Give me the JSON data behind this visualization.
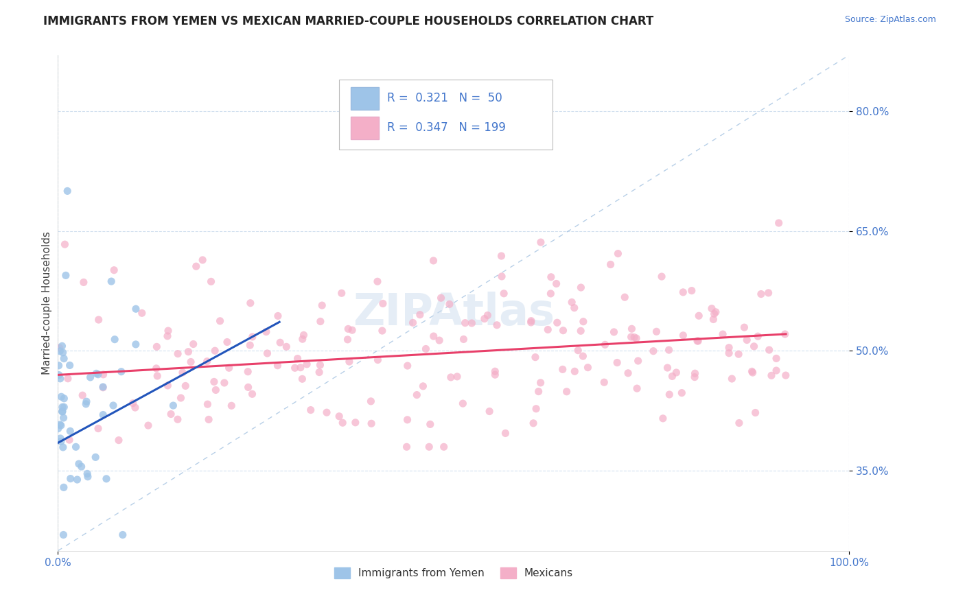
{
  "title": "IMMIGRANTS FROM YEMEN VS MEXICAN MARRIED-COUPLE HOUSEHOLDS CORRELATION CHART",
  "source_text": "Source: ZipAtlas.com",
  "ylabel": "Married-couple Households",
  "xlim": [
    0.0,
    1.0
  ],
  "ylim": [
    0.25,
    0.87
  ],
  "ytick_values": [
    0.35,
    0.5,
    0.65,
    0.8
  ],
  "ytick_labels": [
    "35.0%",
    "50.0%",
    "65.0%",
    "80.0%"
  ],
  "xtick_values": [
    0.0,
    1.0
  ],
  "xtick_labels": [
    "0.0%",
    "100.0%"
  ],
  "series1_color": "#9ec4e8",
  "series2_color": "#f4afc8",
  "line1_color": "#2255bb",
  "line2_color": "#e8406a",
  "diagonal_color": "#99bbdd",
  "background_color": "#ffffff",
  "grid_color": "#ccddee",
  "title_fontsize": 12,
  "axis_label_fontsize": 11,
  "tick_fontsize": 11,
  "legend_r1": "0.321",
  "legend_n1": "50",
  "legend_r2": "0.347",
  "legend_n2": "199",
  "legend_color": "#4477cc",
  "watermark": "ZIPAtlas"
}
